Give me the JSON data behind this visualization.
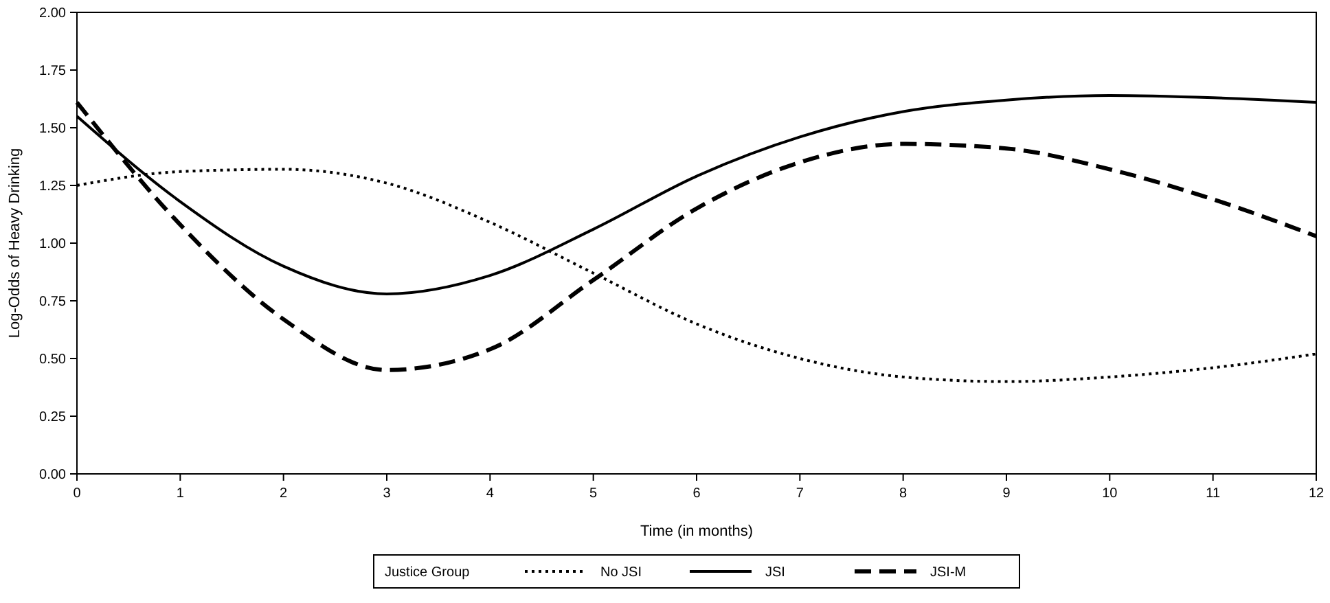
{
  "chart_data": {
    "type": "line",
    "xlabel": "Time (in months)",
    "ylabel": "Log-Odds of Heavy Drinking",
    "legend_title": "Justice Group",
    "legend": "bottom",
    "grid": false,
    "marker": "none",
    "x": [
      0,
      1,
      2,
      3,
      4,
      5,
      6,
      7,
      8,
      9,
      10,
      11,
      12
    ],
    "xlim": [
      0,
      12
    ],
    "xticks": [
      0,
      1,
      2,
      3,
      4,
      5,
      6,
      7,
      8,
      9,
      10,
      11,
      12
    ],
    "ylim": [
      0,
      2
    ],
    "yticks": [
      {
        "value": 0,
        "label": "0.00"
      },
      {
        "value": 0.25,
        "label": "0.25"
      },
      {
        "value": 0.5,
        "label": "0.50"
      },
      {
        "value": 0.75,
        "label": "0.75"
      },
      {
        "value": 1,
        "label": "1.00"
      },
      {
        "value": 1.25,
        "label": "1.25"
      },
      {
        "value": 1.5,
        "label": "1.50"
      },
      {
        "value": 1.75,
        "label": "1.75"
      },
      {
        "value": 2,
        "label": "2.00"
      }
    ],
    "series": [
      {
        "name": "No JSI",
        "color": "#000000",
        "line_style": "dotted",
        "values": [
          1.25,
          1.31,
          1.32,
          1.26,
          1.09,
          0.87,
          0.65,
          0.5,
          0.42,
          0.4,
          0.42,
          0.46,
          0.52
        ]
      },
      {
        "name": "JSI",
        "color": "#000000",
        "line_style": "solid",
        "values": [
          1.55,
          1.18,
          0.9,
          0.78,
          0.86,
          1.06,
          1.29,
          1.46,
          1.57,
          1.62,
          1.64,
          1.63,
          1.61
        ]
      },
      {
        "name": "JSI-M",
        "color": "#000000",
        "line_style": "dashed",
        "values": [
          1.61,
          1.08,
          0.67,
          0.45,
          0.54,
          0.84,
          1.15,
          1.35,
          1.43,
          1.41,
          1.32,
          1.19,
          1.03
        ]
      }
    ]
  }
}
